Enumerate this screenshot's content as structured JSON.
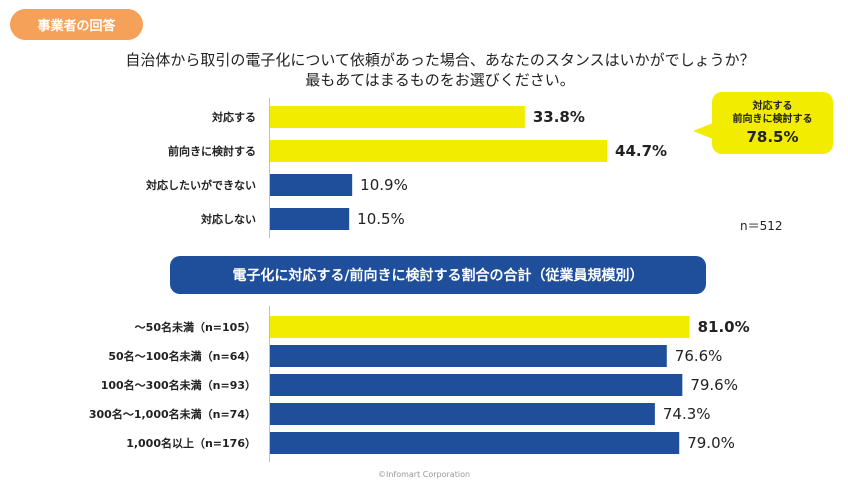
{
  "badge": "事業者の回答",
  "question": {
    "line1": "自治体から取引の電子化について依頼があった場合、あなたのスタンスはいかがでしょうか？",
    "line2": "最もあてはまるものをお選びください。"
  },
  "callout": {
    "line1": "対応する",
    "line2": "前向きに検討する",
    "value": "78.5%"
  },
  "sample_note": "n＝512",
  "section_title": "電子化に対応する/前向きに検討する割合の合計（従業員規模別）",
  "footer": "©Infomart Corporation",
  "colors": {
    "highlight": "#f2ec00",
    "primary": "#1f4e9a",
    "badge": "#f5a15a"
  },
  "chart_data": [
    {
      "type": "bar",
      "orientation": "horizontal",
      "title": "",
      "categories": [
        "対応する",
        "前向きに検討する",
        "対応したいができない",
        "対応しない"
      ],
      "values": [
        33.8,
        44.7,
        10.9,
        10.5
      ],
      "labels": [
        "33.8%",
        "44.7%",
        "10.9%",
        "10.5%"
      ],
      "highlighted": [
        true,
        true,
        false,
        false
      ],
      "xlim": [
        0,
        100
      ],
      "unit": "%"
    },
    {
      "type": "bar",
      "orientation": "horizontal",
      "title": "電子化に対応する/前向きに検討する割合の合計（従業員規模別）",
      "categories": [
        "～50名未満（n=105）",
        "50名～100名未満（n=64）",
        "100名～300名未満（n=93）",
        "300名～1,000名未満（n=74）",
        "1,000名以上（n=176）"
      ],
      "values": [
        81.0,
        76.6,
        79.6,
        74.3,
        79.0
      ],
      "labels": [
        "81.0%",
        "76.6%",
        "79.6%",
        "74.3%",
        "79.0%"
      ],
      "highlighted": [
        true,
        false,
        false,
        false,
        false
      ],
      "xlim": [
        0,
        100
      ],
      "unit": "%"
    }
  ]
}
